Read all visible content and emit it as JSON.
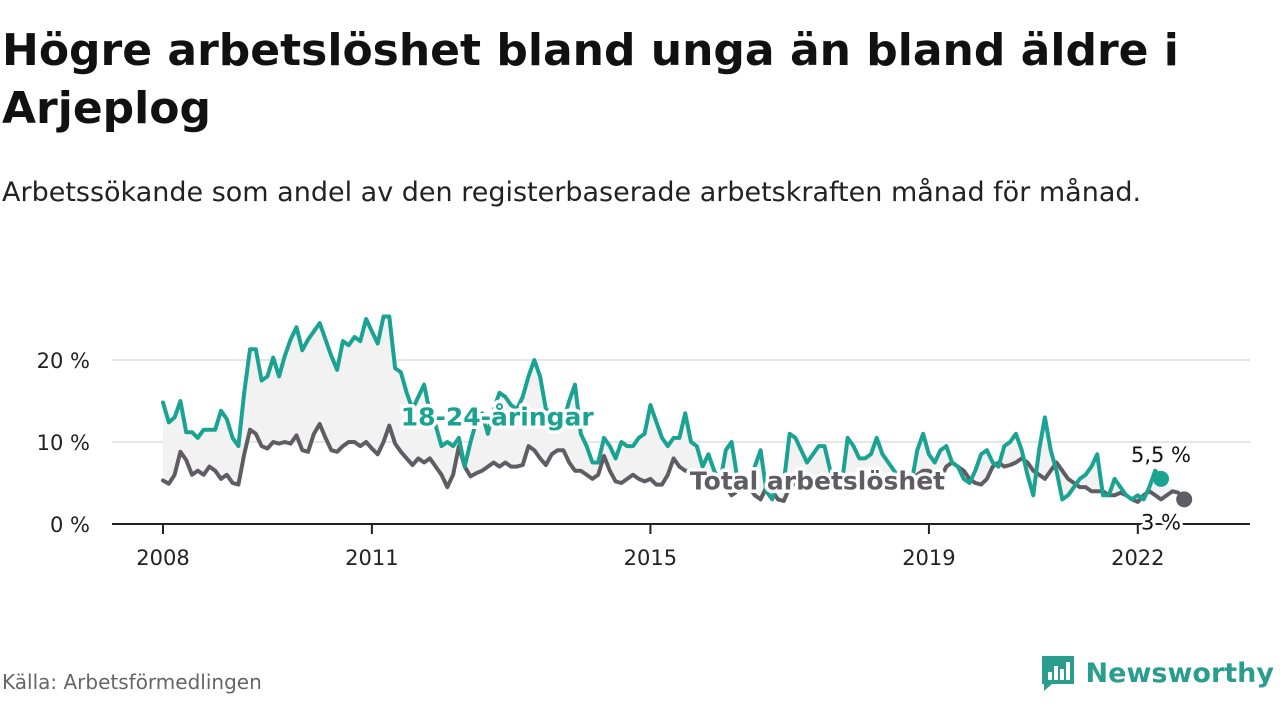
{
  "title": "Högre arbetslöshet bland unga än bland äldre i Arjeplog",
  "subtitle": "Arbetssökande som andel av den registerbaserade arbetskraften månad för månad.",
  "source": "Källa: Arbetsförmedlingen",
  "brand": "Newsworthy",
  "colors": {
    "youth": "#1aa393",
    "total": "#5f5d63",
    "band": "#f2f2f2",
    "grid": "#dddddd"
  },
  "chart_data": {
    "type": "line",
    "title": "Högre arbetslöshet bland unga än bland äldre i Arjeplog",
    "xlabel": "",
    "ylabel": "",
    "ylim": [
      0,
      25
    ],
    "y_ticks": [
      0,
      10,
      20
    ],
    "y_tick_labels": [
      "0 %",
      "10 %",
      "20 %"
    ],
    "x_ticks": [
      2008,
      2011,
      2015,
      2019,
      2022
    ],
    "x_tick_labels": [
      "2008",
      "2011",
      "2015",
      "2019",
      "2022"
    ],
    "x_range": [
      2008.0,
      2022.85
    ],
    "series": [
      {
        "name": "18-24-åringar",
        "start": 2008.0,
        "step": 0.08333,
        "values": [
          14.8,
          12.4,
          13.0,
          15.0,
          11.2,
          11.2,
          10.5,
          11.5,
          11.5,
          11.5,
          13.8,
          12.8,
          10.5,
          9.5,
          16.0,
          21.3,
          21.3,
          17.5,
          18.0,
          20.3,
          18.0,
          20.5,
          22.5,
          24.0,
          21.2,
          22.5,
          23.5,
          24.5,
          22.5,
          20.5,
          18.8,
          22.3,
          21.8,
          22.8,
          22.3,
          25.0,
          23.5,
          22.0,
          25.3,
          25.3,
          19.0,
          18.5,
          16.0,
          14.0,
          15.5,
          17.0,
          13.5,
          12.0,
          9.5,
          10.0,
          9.5,
          10.5,
          7.0,
          10.0,
          12.5,
          13.5,
          11.0,
          14.0,
          16.0,
          15.5,
          14.5,
          14.0,
          15.5,
          18.0,
          20.0,
          18.0,
          14.0,
          13.5,
          11.5,
          12.5,
          15.0,
          17.0,
          11.0,
          9.5,
          7.5,
          7.5,
          10.5,
          9.5,
          8.0,
          10.0,
          9.5,
          9.5,
          10.5,
          11.0,
          14.5,
          12.5,
          10.5,
          9.5,
          10.5,
          10.5,
          13.5,
          10.0,
          9.5,
          7.0,
          8.5,
          6.5,
          5.0,
          9.0,
          10.0,
          5.5,
          4.5,
          5.5,
          7.0,
          9.0,
          4.0,
          3.0,
          5.5,
          5.0,
          11.0,
          10.5,
          9.0,
          7.5,
          8.5,
          9.5,
          9.5,
          6.5,
          4.5,
          5.0,
          10.5,
          9.5,
          8.0,
          8.0,
          8.5,
          10.5,
          8.5,
          7.5,
          6.5,
          5.5,
          5.5,
          5.0,
          9.0,
          11.0,
          8.5,
          7.5,
          9.0,
          9.5,
          7.5,
          7.0,
          5.5,
          5.0,
          6.5,
          8.5,
          9.0,
          7.5,
          7.0,
          9.5,
          10.0,
          11.0,
          9.0,
          6.0,
          3.5,
          9.0,
          13.0,
          9.0,
          6.5,
          3.0,
          3.5,
          4.5,
          5.5,
          6.0,
          7.0,
          8.5,
          3.5,
          3.5,
          5.5,
          4.5,
          3.5,
          3.0,
          3.5,
          3.0,
          4.5,
          6.5,
          5.5
        ]
      },
      {
        "name": "Total arbetslöshet",
        "start": 2008.0,
        "step": 0.08333,
        "values": [
          5.3,
          4.9,
          6.0,
          8.8,
          7.8,
          6.0,
          6.5,
          6.0,
          7.0,
          6.5,
          5.5,
          6.0,
          5.0,
          4.8,
          8.5,
          11.5,
          11.0,
          9.5,
          9.2,
          10.0,
          9.8,
          10.0,
          9.8,
          10.8,
          9.0,
          8.8,
          11.0,
          12.2,
          10.5,
          9.0,
          8.8,
          9.5,
          10.0,
          10.0,
          9.5,
          10.0,
          9.2,
          8.5,
          10.0,
          12.0,
          9.8,
          8.8,
          8.0,
          7.2,
          8.0,
          7.5,
          8.0,
          7.0,
          6.0,
          4.5,
          6.0,
          9.5,
          7.0,
          5.8,
          6.2,
          6.5,
          7.0,
          7.5,
          7.0,
          7.5,
          7.0,
          7.0,
          7.2,
          9.5,
          9.0,
          8.0,
          7.2,
          8.5,
          9.0,
          9.0,
          7.5,
          6.5,
          6.5,
          6.0,
          5.5,
          6.0,
          8.3,
          6.5,
          5.2,
          5.0,
          5.5,
          6.0,
          5.5,
          5.2,
          5.5,
          4.8,
          4.8,
          6.0,
          8.0,
          7.0,
          6.5,
          6.5,
          6.2,
          6.5,
          5.5,
          5.0,
          4.8,
          4.5,
          3.5,
          4.0,
          5.0,
          4.5,
          3.5,
          3.0,
          4.5,
          4.0,
          3.0,
          2.8,
          4.5,
          5.0,
          4.5,
          4.5,
          5.5,
          6.0,
          5.5,
          5.0,
          4.5,
          4.5,
          4.0,
          5.0,
          5.5,
          5.0,
          6.0,
          6.0,
          5.0,
          5.5,
          5.0,
          5.0,
          5.5,
          5.0,
          6.0,
          6.5,
          6.5,
          6.0,
          5.5,
          7.0,
          7.5,
          7.0,
          6.5,
          5.5,
          5.0,
          4.8,
          5.5,
          7.0,
          7.5,
          7.0,
          7.2,
          7.5,
          8.0,
          7.5,
          6.5,
          6.0,
          5.5,
          6.5,
          7.5,
          6.5,
          5.5,
          5.0,
          4.5,
          4.5,
          4.0,
          4.0,
          4.0,
          3.5,
          3.5,
          3.8,
          3.5,
          3.0,
          2.7,
          3.5,
          4.0,
          3.5,
          3.0,
          3.5,
          4.0,
          3.8,
          3.0
        ]
      }
    ],
    "annotations": [
      {
        "text": "18-24-åringar",
        "x": 2012.8,
        "y": 13.0,
        "series": "18-24-åringar"
      },
      {
        "text": "Total arbetslöshet",
        "x": 2017.4,
        "y": 5.2,
        "series": "Total arbetslöshet"
      }
    ],
    "end_labels": [
      {
        "text": "5,5 %",
        "series": "18-24-åringar",
        "value": 5.5
      },
      {
        "text": "3 %",
        "series": "Total arbetslöshet",
        "value": 3.0
      }
    ]
  }
}
